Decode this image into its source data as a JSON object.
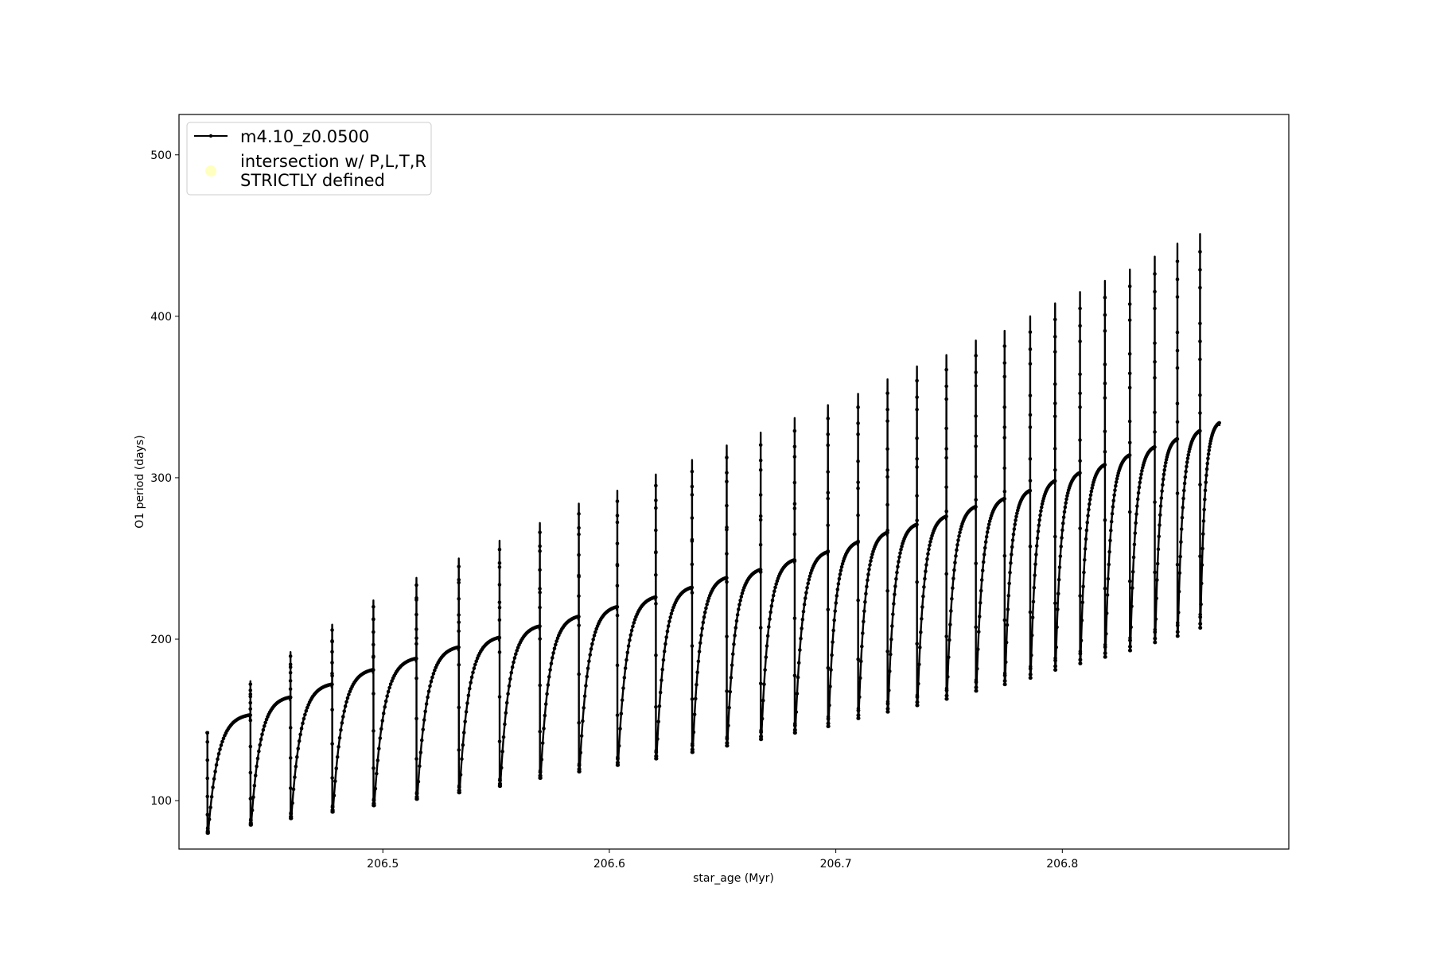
{
  "chart_data": {
    "type": "line",
    "title": "",
    "xlabel": "star_age (Myr)",
    "ylabel": "O1 period (days)",
    "xlim": [
      206.41,
      206.9
    ],
    "ylim": [
      70,
      525
    ],
    "xticks": [
      206.5,
      206.6,
      206.7,
      206.8
    ],
    "yticks": [
      100,
      200,
      300,
      400,
      500
    ],
    "grid": false,
    "legend": {
      "placement": "top-left",
      "entries": [
        {
          "label": "m4.10_z0.0500",
          "marker": "line-with-dots",
          "color": "#000000"
        },
        {
          "label_lines": [
            "intersection w/ P,L,T,R",
            "STRICTLY defined"
          ],
          "marker": "circle",
          "color": "#ffffc0"
        }
      ]
    },
    "series": [
      {
        "name": "m4.10_z0.0500",
        "color": "#000000",
        "cycles": [
          {
            "start": 206.4225,
            "end": 206.4415,
            "top": 153,
            "min": 80,
            "spike": 142
          },
          {
            "start": 206.4415,
            "end": 206.4592,
            "top": 164,
            "min": 85,
            "spike": 174
          },
          {
            "start": 206.4592,
            "end": 206.4776,
            "top": 172,
            "min": 89,
            "spike": 192
          },
          {
            "start": 206.4776,
            "end": 206.4958,
            "top": 181,
            "min": 93,
            "spike": 209
          },
          {
            "start": 206.4958,
            "end": 206.5148,
            "top": 188,
            "min": 97,
            "spike": 224
          },
          {
            "start": 206.5148,
            "end": 206.5335,
            "top": 195,
            "min": 101,
            "spike": 238
          },
          {
            "start": 206.5335,
            "end": 206.5515,
            "top": 201,
            "min": 105,
            "spike": 250
          },
          {
            "start": 206.5515,
            "end": 206.5693,
            "top": 208,
            "min": 109,
            "spike": 261
          },
          {
            "start": 206.5693,
            "end": 206.5865,
            "top": 214,
            "min": 114,
            "spike": 272
          },
          {
            "start": 206.5865,
            "end": 206.6035,
            "top": 220,
            "min": 118,
            "spike": 284
          },
          {
            "start": 206.6035,
            "end": 206.6205,
            "top": 226,
            "min": 122,
            "spike": 292
          },
          {
            "start": 206.6205,
            "end": 206.6365,
            "top": 232,
            "min": 126,
            "spike": 302
          },
          {
            "start": 206.6365,
            "end": 206.6518,
            "top": 238,
            "min": 130,
            "spike": 311
          },
          {
            "start": 206.6518,
            "end": 206.6668,
            "top": 243,
            "min": 134,
            "spike": 320
          },
          {
            "start": 206.6668,
            "end": 206.6818,
            "top": 249,
            "min": 138,
            "spike": 328
          },
          {
            "start": 206.6818,
            "end": 206.6965,
            "top": 254,
            "min": 142,
            "spike": 337
          },
          {
            "start": 206.6965,
            "end": 206.7098,
            "top": 260,
            "min": 146,
            "spike": 345
          },
          {
            "start": 206.7098,
            "end": 206.7228,
            "top": 266,
            "min": 151,
            "spike": 352
          },
          {
            "start": 206.7228,
            "end": 206.7358,
            "top": 271,
            "min": 155,
            "spike": 361
          },
          {
            "start": 206.7358,
            "end": 206.7488,
            "top": 276,
            "min": 159,
            "spike": 369
          },
          {
            "start": 206.7488,
            "end": 206.7618,
            "top": 282,
            "min": 163,
            "spike": 376
          },
          {
            "start": 206.7618,
            "end": 206.7745,
            "top": 287,
            "min": 168,
            "spike": 385
          },
          {
            "start": 206.7745,
            "end": 206.7858,
            "top": 292,
            "min": 172,
            "spike": 391
          },
          {
            "start": 206.7858,
            "end": 206.7968,
            "top": 298,
            "min": 176,
            "spike": 400
          },
          {
            "start": 206.7968,
            "end": 206.8078,
            "top": 303,
            "min": 181,
            "spike": 408
          },
          {
            "start": 206.8078,
            "end": 206.8188,
            "top": 308,
            "min": 185,
            "spike": 415
          },
          {
            "start": 206.8188,
            "end": 206.8298,
            "top": 314,
            "min": 189,
            "spike": 422
          },
          {
            "start": 206.8298,
            "end": 206.8408,
            "top": 319,
            "min": 193,
            "spike": 429
          },
          {
            "start": 206.8408,
            "end": 206.8508,
            "top": 324,
            "min": 198,
            "spike": 437
          },
          {
            "start": 206.8508,
            "end": 206.8608,
            "top": 329,
            "min": 202,
            "spike": 445
          },
          {
            "start": 206.8608,
            "end": 206.8695,
            "top": 334,
            "min": 207,
            "spike": 451
          }
        ]
      }
    ]
  }
}
